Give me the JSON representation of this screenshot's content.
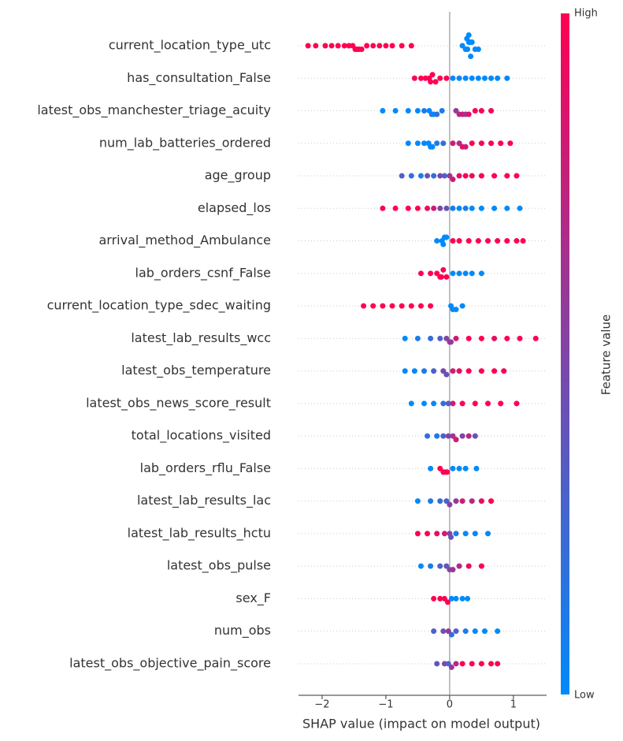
{
  "chart_data": {
    "type": "beeswarm",
    "x_label": "SHAP value (impact on model output)",
    "xlim": [
      -2.37,
      1.52
    ],
    "xticks": [
      {
        "value": -2,
        "label": "−2"
      },
      {
        "value": -1,
        "label": "−1"
      },
      0,
      1
    ],
    "low_color": "#008afb",
    "high_color": "#ff0052",
    "colorbar": {
      "label": "Feature value",
      "high_label": "High",
      "low_label": "Low"
    },
    "features": [
      {
        "name": "current_location_type_utc",
        "shap": [
          -2.22,
          -2.1,
          -1.95,
          -1.85,
          -1.75,
          -1.65,
          -1.58,
          -1.52,
          -1.48,
          -1.45,
          -1.42,
          -1.38,
          -1.3,
          -1.2,
          -1.1,
          -1.0,
          -0.9,
          -0.75,
          -0.6,
          0.2,
          0.25,
          0.28,
          0.3,
          0.32,
          0.35,
          0.4,
          0.45,
          0.27,
          0.3,
          0.33
        ],
        "feature_value": [
          1,
          1,
          1,
          1,
          1,
          1,
          1,
          1,
          1,
          1,
          1,
          1,
          1,
          1,
          1,
          1,
          1,
          1,
          1,
          0,
          0,
          0,
          0,
          0,
          0,
          0,
          0,
          0,
          0,
          0
        ]
      },
      {
        "name": "has_consultation_False",
        "shap": [
          -0.55,
          -0.45,
          -0.38,
          -0.32,
          -0.3,
          -0.27,
          -0.22,
          -0.15,
          -0.05,
          0.05,
          0.15,
          0.25,
          0.35,
          0.45,
          0.55,
          0.65,
          0.75,
          0.9
        ],
        "feature_value": [
          1,
          1,
          1,
          1,
          1,
          1,
          1,
          1,
          1,
          0,
          0,
          0,
          0,
          0,
          0,
          0,
          0,
          0
        ]
      },
      {
        "name": "latest_obs_manchester_triage_acuity",
        "shap": [
          -1.05,
          -0.85,
          -0.65,
          -0.5,
          -0.4,
          -0.32,
          -0.28,
          -0.25,
          -0.2,
          -0.12,
          0.1,
          0.15,
          0.2,
          0.25,
          0.3,
          0.4,
          0.5,
          0.65
        ],
        "feature_value": [
          0,
          0,
          0,
          0,
          0.1,
          0,
          0.1,
          0,
          0.2,
          0.1,
          0.6,
          0.7,
          0.8,
          0.6,
          0.9,
          1,
          1,
          1
        ]
      },
      {
        "name": "num_lab_batteries_ordered",
        "shap": [
          -0.65,
          -0.5,
          -0.4,
          -0.33,
          -0.3,
          -0.27,
          -0.2,
          -0.1,
          0.05,
          0.15,
          0.2,
          0.25,
          0.35,
          0.5,
          0.65,
          0.8,
          0.95
        ],
        "feature_value": [
          0,
          0,
          0,
          0,
          0,
          0,
          0.1,
          0.2,
          0.8,
          0.7,
          0.9,
          0.8,
          1,
          1,
          1,
          1,
          1
        ]
      },
      {
        "name": "age_group",
        "shap": [
          -0.75,
          -0.6,
          -0.45,
          -0.35,
          -0.25,
          -0.15,
          -0.08,
          0,
          0.05,
          0.15,
          0.25,
          0.35,
          0.5,
          0.7,
          0.9,
          1.05
        ],
        "feature_value": [
          0.3,
          0.2,
          0.1,
          0.4,
          0.2,
          0.5,
          0.3,
          0.6,
          0.8,
          0.9,
          1,
          0.9,
          1,
          1,
          1,
          1
        ]
      },
      {
        "name": "elapsed_los",
        "shap": [
          -1.05,
          -0.85,
          -0.65,
          -0.5,
          -0.35,
          -0.25,
          -0.15,
          -0.05,
          0.05,
          0.15,
          0.25,
          0.35,
          0.5,
          0.7,
          0.9,
          1.1
        ],
        "feature_value": [
          1,
          1,
          1,
          1,
          0.9,
          0.8,
          0.5,
          0.4,
          0.1,
          0,
          0.1,
          0,
          0,
          0,
          0,
          0
        ]
      },
      {
        "name": "arrival_method_Ambulance",
        "shap": [
          -0.2,
          -0.12,
          -0.1,
          -0.08,
          -0.05,
          0.05,
          0.15,
          0.3,
          0.45,
          0.6,
          0.75,
          0.9,
          1.05,
          1.15
        ],
        "feature_value": [
          0,
          0,
          0,
          0,
          0,
          1,
          1,
          1,
          1,
          1,
          1,
          1,
          1,
          1
        ]
      },
      {
        "name": "lab_orders_csnf_False",
        "shap": [
          -0.45,
          -0.3,
          -0.2,
          -0.15,
          -0.13,
          -0.1,
          -0.05,
          0.05,
          0.15,
          0.25,
          0.35,
          0.5
        ],
        "feature_value": [
          1,
          1,
          1,
          1,
          1,
          1,
          1,
          0,
          0,
          0,
          0,
          0
        ]
      },
      {
        "name": "current_location_type_sdec_waiting",
        "shap": [
          -1.35,
          -1.2,
          -1.05,
          -0.9,
          -0.75,
          -0.6,
          -0.45,
          -0.3,
          0.02,
          0.05,
          0.1,
          0.2
        ],
        "feature_value": [
          1,
          1,
          1,
          1,
          1,
          1,
          1,
          1,
          0,
          0,
          0,
          0
        ]
      },
      {
        "name": "latest_lab_results_wcc",
        "shap": [
          -0.7,
          -0.5,
          -0.3,
          -0.15,
          -0.05,
          0,
          0.02,
          0.1,
          0.3,
          0.5,
          0.7,
          0.9,
          1.1,
          1.35
        ],
        "feature_value": [
          0,
          0.1,
          0.2,
          0.3,
          0.5,
          0.5,
          0.6,
          0.8,
          1,
          1,
          0.9,
          1,
          1,
          1
        ]
      },
      {
        "name": "latest_obs_temperature",
        "shap": [
          -0.7,
          -0.55,
          -0.4,
          -0.25,
          -0.1,
          -0.05,
          0.05,
          0.15,
          0.3,
          0.5,
          0.7,
          0.85
        ],
        "feature_value": [
          0,
          0,
          0.1,
          0.3,
          0.5,
          0.4,
          0.8,
          0.9,
          1,
          1,
          1,
          1
        ]
      },
      {
        "name": "latest_obs_news_score_result",
        "shap": [
          -0.6,
          -0.4,
          -0.25,
          -0.1,
          -0.02,
          0.05,
          0.2,
          0.4,
          0.6,
          0.8,
          1.05
        ],
        "feature_value": [
          0,
          0,
          0,
          0.2,
          0.3,
          0.8,
          1,
          1,
          1,
          1,
          1
        ]
      },
      {
        "name": "total_locations_visited",
        "shap": [
          -0.35,
          -0.2,
          -0.1,
          -0.02,
          0.05,
          0.1,
          0.2,
          0.3,
          0.4
        ],
        "feature_value": [
          0.2,
          0.1,
          0.3,
          0.5,
          0.6,
          0.8,
          0.5,
          0.7,
          0.4
        ]
      },
      {
        "name": "lab_orders_rflu_False",
        "shap": [
          -0.3,
          -0.15,
          -0.1,
          -0.07,
          -0.04,
          0.05,
          0.15,
          0.25,
          0.42
        ],
        "feature_value": [
          0,
          1,
          1,
          1,
          1,
          0,
          0,
          0,
          0
        ]
      },
      {
        "name": "latest_lab_results_lac",
        "shap": [
          -0.5,
          -0.3,
          -0.15,
          -0.05,
          0,
          0.1,
          0.2,
          0.35,
          0.5,
          0.65
        ],
        "feature_value": [
          0,
          0.1,
          0.2,
          0.3,
          0.5,
          0.6,
          0.8,
          0.7,
          0.9,
          1
        ]
      },
      {
        "name": "latest_lab_results_hctu",
        "shap": [
          -0.5,
          -0.35,
          -0.2,
          -0.08,
          0,
          0.02,
          0.1,
          0.25,
          0.4,
          0.6
        ],
        "feature_value": [
          1,
          1,
          0.9,
          0.8,
          0.5,
          0.4,
          0.1,
          0,
          0,
          0
        ]
      },
      {
        "name": "latest_obs_pulse",
        "shap": [
          -0.45,
          -0.3,
          -0.15,
          -0.05,
          0,
          0.05,
          0.15,
          0.3,
          0.5
        ],
        "feature_value": [
          0,
          0.1,
          0.3,
          0.4,
          0.5,
          0.6,
          0.7,
          0.9,
          1
        ]
      },
      {
        "name": "sex_F",
        "shap": [
          -0.25,
          -0.15,
          -0.08,
          -0.03,
          0.03,
          0.1,
          0.2,
          0.28
        ],
        "feature_value": [
          1,
          1,
          1,
          1,
          0,
          0,
          0,
          0
        ]
      },
      {
        "name": "num_obs",
        "shap": [
          -0.25,
          -0.1,
          -0.02,
          0.03,
          0.1,
          0.25,
          0.4,
          0.55,
          0.75
        ],
        "feature_value": [
          0.3,
          0.4,
          0.6,
          0.2,
          0.3,
          0.1,
          0,
          0,
          0
        ]
      },
      {
        "name": "latest_obs_objective_pain_score",
        "shap": [
          -0.2,
          -0.08,
          -0.02,
          0.03,
          0.1,
          0.2,
          0.35,
          0.5,
          0.65,
          0.75
        ],
        "feature_value": [
          0.4,
          0.5,
          0.3,
          0.6,
          0.7,
          1,
          1,
          1,
          1,
          1
        ]
      }
    ]
  }
}
